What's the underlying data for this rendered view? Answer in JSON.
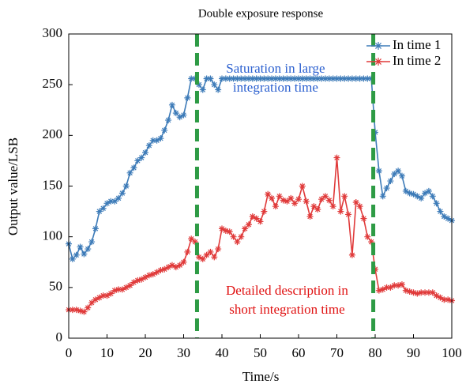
{
  "chart_data": {
    "type": "line",
    "title": "Double exposure response",
    "x_label": "Time/s",
    "y_label": "Output value/LSB",
    "xlim": [
      0,
      100
    ],
    "xticks": [
      0,
      10,
      20,
      30,
      40,
      50,
      60,
      70,
      80,
      90,
      100
    ],
    "ylim": [
      0,
      300
    ],
    "yticks": [
      0,
      50,
      100,
      150,
      200,
      250,
      300
    ],
    "x": [
      0,
      1,
      2,
      3,
      4,
      5,
      6,
      7,
      8,
      9,
      10,
      11,
      12,
      13,
      14,
      15,
      16,
      17,
      18,
      19,
      20,
      21,
      22,
      23,
      24,
      25,
      26,
      27,
      28,
      29,
      30,
      31,
      32,
      33,
      34,
      35,
      36,
      37,
      38,
      39,
      40,
      41,
      42,
      43,
      44,
      45,
      46,
      47,
      48,
      49,
      50,
      51,
      52,
      53,
      54,
      55,
      56,
      57,
      58,
      59,
      60,
      61,
      62,
      63,
      64,
      65,
      66,
      67,
      68,
      69,
      70,
      71,
      72,
      73,
      74,
      75,
      76,
      77,
      78,
      79,
      80,
      81,
      82,
      83,
      84,
      85,
      86,
      87,
      88,
      89,
      90,
      91,
      92,
      93,
      94,
      95,
      96,
      97,
      98,
      99,
      100
    ],
    "series": [
      {
        "name": "In time 1",
        "color": "#3d7bb8",
        "values": [
          93,
          78,
          82,
          90,
          83,
          88,
          95,
          108,
          125,
          128,
          133,
          135,
          135,
          138,
          143,
          150,
          163,
          168,
          175,
          178,
          183,
          190,
          195,
          195,
          197,
          205,
          215,
          230,
          222,
          218,
          220,
          237,
          256,
          256,
          250,
          245,
          256,
          256,
          250,
          245,
          256,
          256,
          256,
          256,
          256,
          256,
          256,
          256,
          256,
          256,
          256,
          256,
          256,
          256,
          256,
          256,
          256,
          256,
          256,
          256,
          256,
          256,
          256,
          256,
          256,
          256,
          256,
          256,
          256,
          256,
          256,
          256,
          256,
          256,
          256,
          256,
          256,
          256,
          256,
          256,
          203,
          165,
          140,
          148,
          155,
          162,
          165,
          160,
          145,
          143,
          142,
          140,
          138,
          143,
          145,
          140,
          133,
          125,
          120,
          118,
          116
        ]
      },
      {
        "name": "In time 2",
        "color": "#e03a3a",
        "values": [
          28,
          28,
          28,
          27,
          26,
          30,
          35,
          38,
          40,
          42,
          42,
          44,
          47,
          48,
          48,
          50,
          52,
          55,
          57,
          58,
          60,
          62,
          63,
          65,
          67,
          68,
          70,
          72,
          70,
          72,
          75,
          85,
          98,
          95,
          80,
          78,
          82,
          85,
          80,
          88,
          108,
          106,
          105,
          100,
          95,
          100,
          108,
          112,
          120,
          118,
          115,
          125,
          142,
          138,
          130,
          140,
          136,
          135,
          138,
          133,
          137,
          150,
          135,
          120,
          130,
          127,
          137,
          140,
          136,
          130,
          178,
          125,
          140,
          122,
          82,
          134,
          130,
          118,
          100,
          95,
          68,
          47,
          48,
          50,
          50,
          52,
          52,
          53,
          47,
          46,
          45,
          44,
          45,
          45,
          45,
          45,
          42,
          40,
          38,
          38,
          37
        ]
      }
    ],
    "vlines": [
      33.5,
      79.5
    ],
    "vline_color": "#2e9b45",
    "annotations": [
      {
        "lines": [
          "Saturation in large",
          "integration time"
        ],
        "x": 54,
        "y": 265,
        "color": "#2a5fcf"
      },
      {
        "lines": [
          "Detailed description in",
          "short integration time"
        ],
        "x": 57,
        "y": 46,
        "color": "#e01010"
      }
    ],
    "legend": "upper right"
  }
}
